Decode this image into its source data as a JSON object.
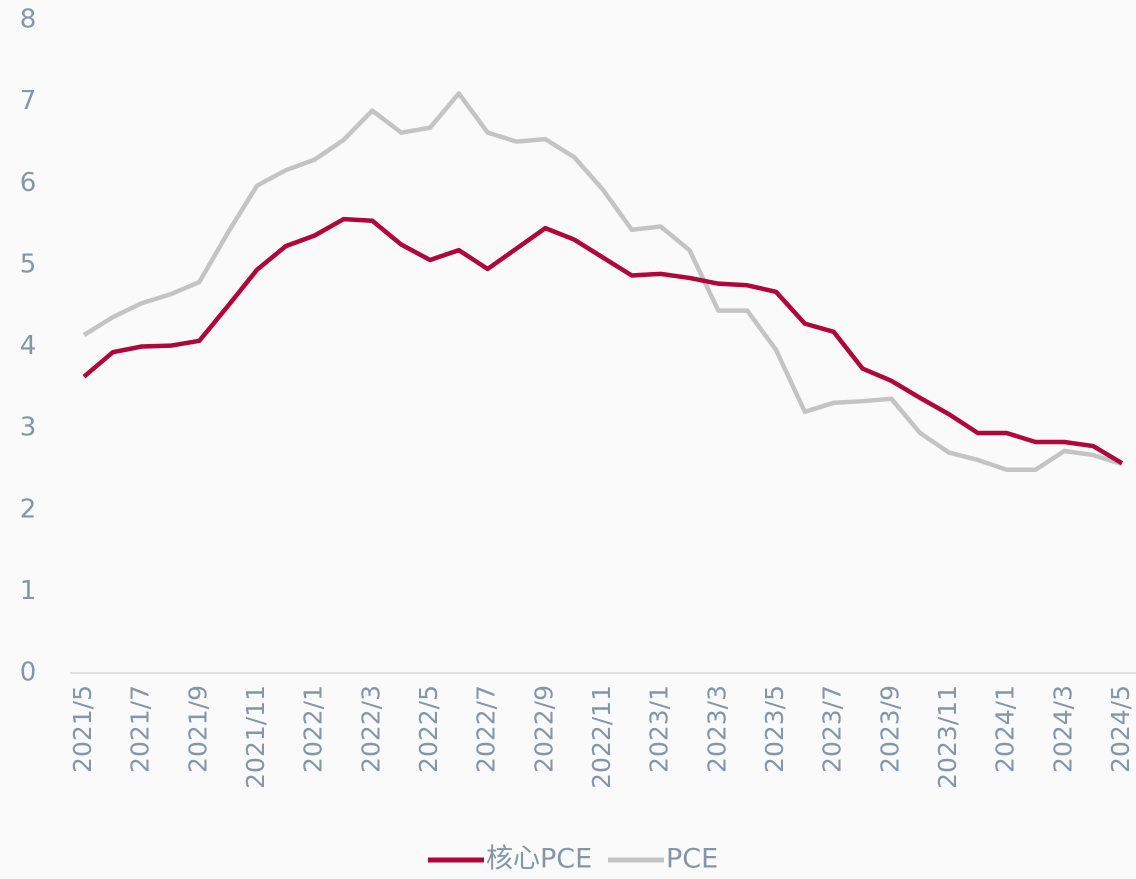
{
  "chart_data": {
    "type": "line",
    "categories": [
      "2021/5",
      null,
      "2021/7",
      null,
      "2021/9",
      null,
      "2021/11",
      null,
      "2022/1",
      null,
      "2022/3",
      null,
      "2022/5",
      null,
      "2022/7",
      null,
      "2022/9",
      null,
      "2022/11",
      null,
      "2023/1",
      null,
      "2023/3",
      null,
      "2023/5",
      null,
      "2023/7",
      null,
      "2023/9",
      null,
      "2023/11",
      null,
      "2024/1",
      null,
      "2024/3",
      null,
      "2024/5"
    ],
    "series": [
      {
        "name": "核心PCE",
        "color": "#b0063a",
        "values": [
          3.63,
          3.93,
          4.0,
          4.01,
          4.07,
          4.5,
          4.94,
          5.23,
          5.36,
          5.56,
          5.54,
          5.25,
          5.06,
          5.18,
          4.95,
          5.2,
          5.45,
          5.31,
          5.09,
          4.87,
          4.89,
          4.84,
          4.77,
          4.75,
          4.67,
          4.28,
          4.18,
          3.73,
          3.58,
          3.37,
          3.17,
          2.94,
          2.94,
          2.83,
          2.83,
          2.78,
          2.57
        ]
      },
      {
        "name": "PCE",
        "color": "#c4c4c4",
        "values": [
          4.14,
          4.36,
          4.53,
          4.64,
          4.79,
          5.4,
          5.97,
          6.16,
          6.29,
          6.53,
          6.89,
          6.62,
          6.68,
          7.1,
          6.62,
          6.51,
          6.54,
          6.32,
          5.92,
          5.43,
          5.47,
          5.18,
          4.44,
          4.44,
          3.96,
          3.2,
          3.31,
          3.33,
          3.36,
          2.94,
          2.7,
          2.61,
          2.49,
          2.49,
          2.72,
          2.67,
          2.56
        ]
      }
    ],
    "ylim": [
      0,
      8
    ],
    "yticks": [
      0,
      1,
      2,
      3,
      4,
      5,
      6,
      7,
      8
    ],
    "grid": false,
    "legend": "bottom"
  }
}
